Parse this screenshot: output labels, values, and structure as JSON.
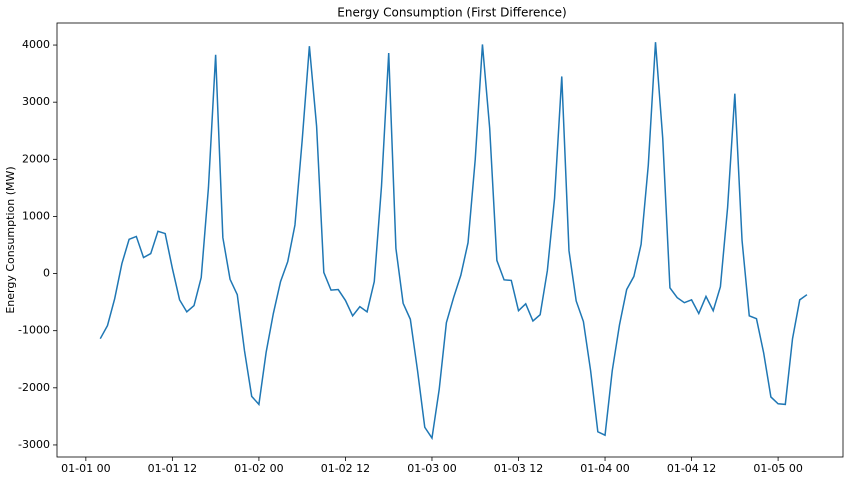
{
  "chart_data": {
    "type": "line",
    "title": "Energy Consumption (First Difference)",
    "y_label": "Energy Consumption (MW)",
    "x": [
      "01-01 02",
      "01-01 03",
      "01-01 04",
      "01-01 05",
      "01-01 06",
      "01-01 07",
      "01-01 08",
      "01-01 09",
      "01-01 10",
      "01-01 11",
      "01-01 12",
      "01-01 13",
      "01-01 14",
      "01-01 15",
      "01-01 16",
      "01-01 17",
      "01-01 18",
      "01-01 19",
      "01-01 20",
      "01-01 21",
      "01-01 22",
      "01-01 23",
      "01-02 00",
      "01-02 01",
      "01-02 02",
      "01-02 03",
      "01-02 04",
      "01-02 05",
      "01-02 06",
      "01-02 07",
      "01-02 08",
      "01-02 09",
      "01-02 10",
      "01-02 11",
      "01-02 12",
      "01-02 13",
      "01-02 14",
      "01-02 15",
      "01-02 16",
      "01-02 17",
      "01-02 18",
      "01-02 19",
      "01-02 20",
      "01-02 21",
      "01-02 22",
      "01-02 23",
      "01-03 00",
      "01-03 01",
      "01-03 02",
      "01-03 03",
      "01-03 04",
      "01-03 05",
      "01-03 06",
      "01-03 07",
      "01-03 08",
      "01-03 09",
      "01-03 10",
      "01-03 11",
      "01-03 12",
      "01-03 13",
      "01-03 14",
      "01-03 15",
      "01-03 16",
      "01-03 17",
      "01-03 18",
      "01-03 19",
      "01-03 20",
      "01-03 21",
      "01-03 22",
      "01-03 23",
      "01-04 00",
      "01-04 01",
      "01-04 02",
      "01-04 03",
      "01-04 04",
      "01-04 05",
      "01-04 06",
      "01-04 07",
      "01-04 08",
      "01-04 09",
      "01-04 10",
      "01-04 11",
      "01-04 12",
      "01-04 13",
      "01-04 14",
      "01-04 15",
      "01-04 16",
      "01-04 17",
      "01-04 18",
      "01-04 19",
      "01-04 20",
      "01-04 21",
      "01-04 22",
      "01-04 23",
      "01-05 00",
      "01-05 01",
      "01-05 02",
      "01-05 03",
      "01-05 04"
    ],
    "series": [
      {
        "color": "#1f77b4",
        "values": [
          -1140,
          -910,
          -440,
          175,
          600,
          650,
          280,
          350,
          740,
          700,
          90,
          -460,
          -670,
          -560,
          -70,
          1500,
          3830,
          630,
          -100,
          -370,
          -1350,
          -2150,
          -2290,
          -1380,
          -700,
          -140,
          210,
          850,
          2330,
          3980,
          2580,
          20,
          -290,
          -280,
          -470,
          -740,
          -580,
          -670,
          -140,
          1530,
          3860,
          440,
          -520,
          -800,
          -1700,
          -2690,
          -2880,
          -2030,
          -860,
          -420,
          -30,
          540,
          2000,
          4010,
          2550,
          230,
          -110,
          -120,
          -650,
          -530,
          -830,
          -720,
          50,
          1320,
          3450,
          400,
          -480,
          -840,
          -1700,
          -2770,
          -2830,
          -1700,
          -900,
          -280,
          -50,
          510,
          1900,
          4050,
          2370,
          -250,
          -420,
          -510,
          -460,
          -700,
          -400,
          -650,
          -230,
          1160,
          3150,
          580,
          -740,
          -790,
          -1390,
          -2160,
          -2280,
          -2290,
          -1140,
          -460,
          -370
        ]
      }
    ],
    "xlim": [
      "12-31 20",
      "01-05 09"
    ],
    "xticks": [
      "01-01 00",
      "01-01 12",
      "01-02 00",
      "01-02 12",
      "01-03 00",
      "01-03 12",
      "01-04 00",
      "01-04 12",
      "01-05 00"
    ],
    "ylim": [
      -3211,
      4386
    ],
    "yticks": [
      -3000,
      -2000,
      -1000,
      0,
      1000,
      2000,
      3000,
      4000
    ]
  }
}
